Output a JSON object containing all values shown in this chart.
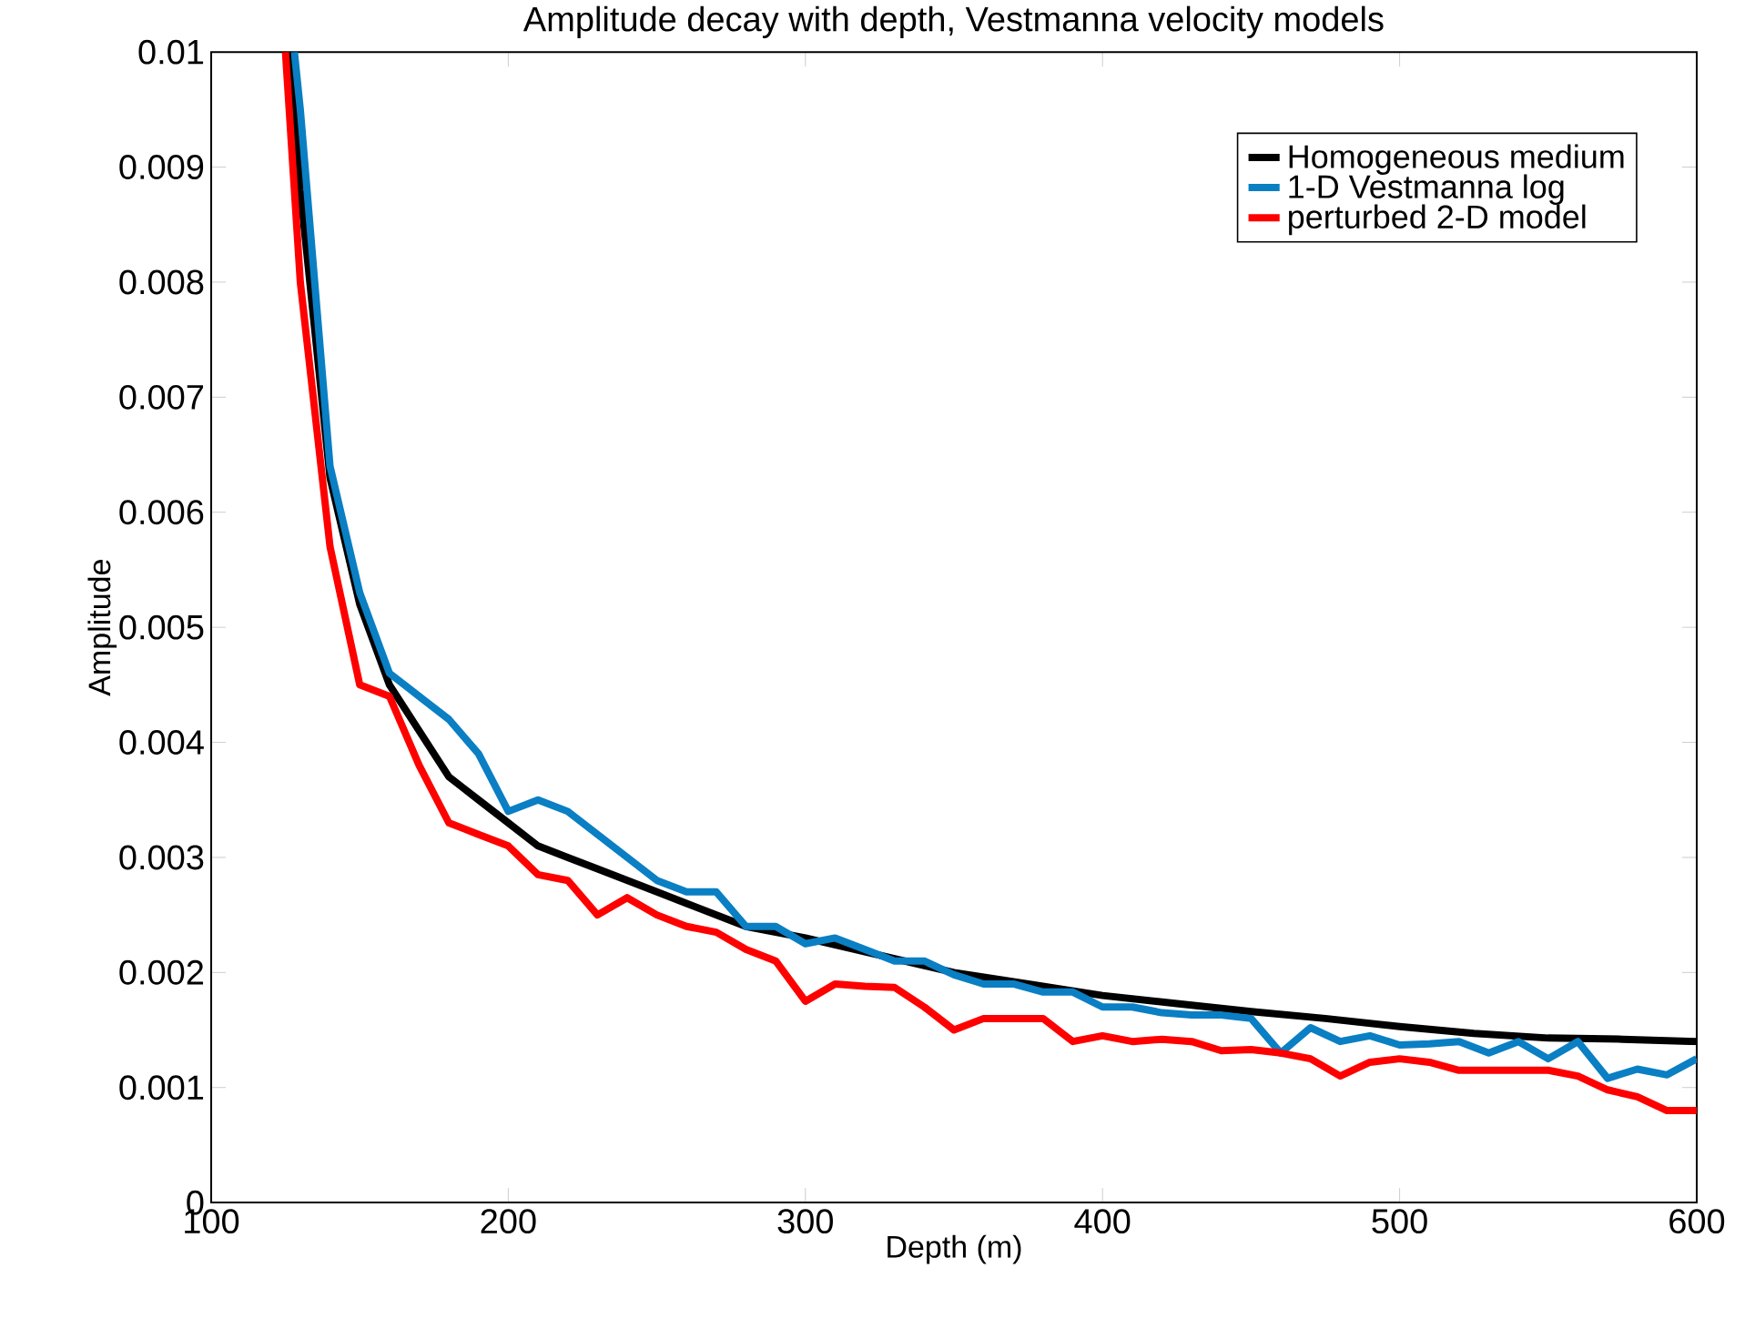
{
  "chart_data": {
    "type": "line",
    "title": "Amplitude decay with depth, Vestmanna velocity models",
    "xlabel": "Depth (m)",
    "ylabel": "Amplitude",
    "xlim": [
      100,
      600
    ],
    "ylim": [
      0,
      0.01
    ],
    "xticks": [
      100,
      200,
      300,
      400,
      500,
      600
    ],
    "yticks": [
      0,
      0.001,
      0.002,
      0.003,
      0.004,
      0.005,
      0.006,
      0.007,
      0.008,
      0.009,
      0.01
    ],
    "legend": "top right",
    "grid": false,
    "marker": "none",
    "line_style": "solid",
    "series": [
      {
        "name": "Homogeneous medium",
        "color": "#000000",
        "x": [
          127,
          130,
          140,
          150,
          160,
          170,
          180,
          190,
          200,
          210,
          220,
          230,
          240,
          250,
          260,
          270,
          280,
          290,
          300,
          325,
          350,
          375,
          400,
          425,
          450,
          475,
          500,
          525,
          550,
          575,
          600
        ],
        "values": [
          0.01,
          0.0088,
          0.0063,
          0.0052,
          0.0045,
          0.0041,
          0.0037,
          0.0035,
          0.0033,
          0.0031,
          0.003,
          0.0029,
          0.0028,
          0.0027,
          0.0026,
          0.0025,
          0.0024,
          0.00235,
          0.0023,
          0.00215,
          0.002,
          0.0019,
          0.0018,
          0.00173,
          0.00166,
          0.0016,
          0.00153,
          0.00147,
          0.00143,
          0.00142,
          0.0014
        ]
      },
      {
        "name": "1-D Vestmanna log",
        "color": "#0a7fc3",
        "x": [
          128,
          130,
          140,
          150,
          160,
          170,
          180,
          190,
          200,
          210,
          220,
          230,
          240,
          250,
          260,
          270,
          280,
          290,
          300,
          310,
          320,
          330,
          340,
          350,
          360,
          370,
          380,
          390,
          400,
          410,
          420,
          430,
          440,
          450,
          460,
          470,
          480,
          490,
          500,
          510,
          520,
          530,
          540,
          550,
          560,
          570,
          580,
          590,
          600
        ],
        "values": [
          0.01,
          0.0095,
          0.0064,
          0.0053,
          0.0046,
          0.0044,
          0.0042,
          0.0039,
          0.0034,
          0.0035,
          0.0034,
          0.0032,
          0.003,
          0.0028,
          0.0027,
          0.0027,
          0.0024,
          0.0024,
          0.00225,
          0.0023,
          0.0022,
          0.0021,
          0.0021,
          0.00198,
          0.0019,
          0.0019,
          0.00183,
          0.00183,
          0.0017,
          0.0017,
          0.00165,
          0.00163,
          0.00163,
          0.0016,
          0.0013,
          0.00152,
          0.0014,
          0.00145,
          0.00137,
          0.00138,
          0.0014,
          0.0013,
          0.0014,
          0.00125,
          0.0014,
          0.00108,
          0.00116,
          0.00111,
          0.00125
        ]
      },
      {
        "name": "perturbed 2-D model",
        "color": "#ff0000",
        "x": [
          125,
          130,
          140,
          150,
          160,
          170,
          180,
          190,
          200,
          210,
          220,
          230,
          240,
          250,
          260,
          270,
          280,
          290,
          300,
          310,
          320,
          330,
          340,
          350,
          360,
          370,
          380,
          390,
          400,
          410,
          420,
          430,
          440,
          450,
          460,
          470,
          480,
          490,
          500,
          510,
          520,
          530,
          540,
          550,
          560,
          570,
          580,
          590,
          600
        ],
        "values": [
          0.01,
          0.008,
          0.0057,
          0.0045,
          0.0044,
          0.0038,
          0.0033,
          0.0032,
          0.0031,
          0.00285,
          0.0028,
          0.0025,
          0.00265,
          0.0025,
          0.0024,
          0.00235,
          0.0022,
          0.0021,
          0.00175,
          0.0019,
          0.00188,
          0.00187,
          0.0017,
          0.0015,
          0.0016,
          0.0016,
          0.0016,
          0.0014,
          0.00145,
          0.0014,
          0.00142,
          0.0014,
          0.00132,
          0.00133,
          0.0013,
          0.00125,
          0.0011,
          0.00122,
          0.00125,
          0.00122,
          0.00115,
          0.00115,
          0.00115,
          0.00115,
          0.0011,
          0.00098,
          0.00092,
          0.0008,
          0.0008
        ]
      }
    ]
  }
}
